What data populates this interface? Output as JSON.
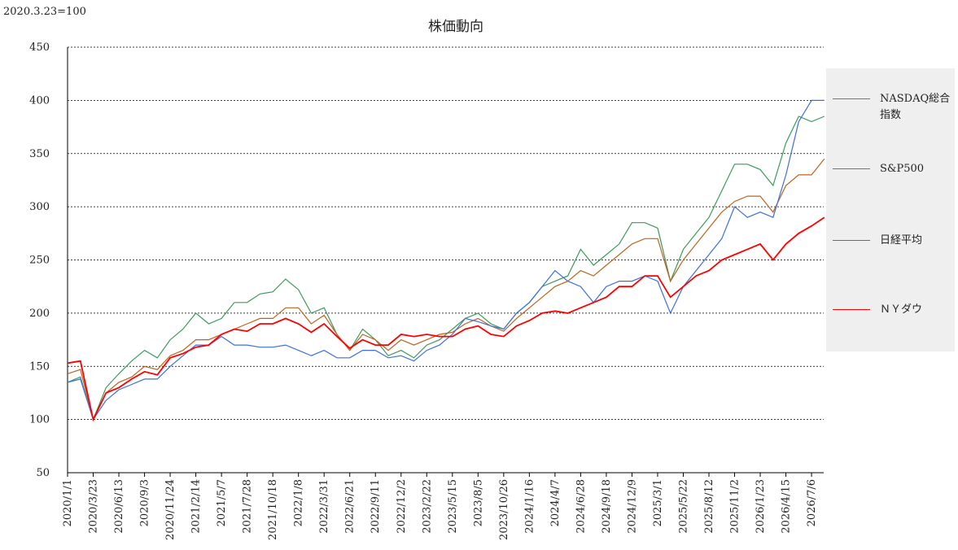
{
  "chart_data": {
    "type": "line",
    "title": "株価動向",
    "note": "2020.3.23=100",
    "categories": [
      "2020/1/1",
      null,
      "2020/3/23",
      null,
      "2020/6/13",
      null,
      "2020/9/3",
      null,
      "2020/11/24",
      null,
      "2021/2/14",
      null,
      "2021/5/7",
      null,
      "2021/7/28",
      null,
      "2021/10/18",
      null,
      "2022/1/8",
      null,
      "2022/3/31",
      null,
      "2022/6/21",
      null,
      "2022/9/11",
      null,
      "2022/12/2",
      null,
      "2023/2/22",
      null,
      "2023/5/15",
      null,
      "2023/8/5",
      null,
      "2023/10/26",
      null,
      "2024/1/16",
      null,
      "2024/4/7",
      null,
      "2024/6/28",
      null,
      "2024/9/18",
      null,
      "2024/12/9",
      null,
      "2025/3/1",
      null,
      "2025/5/22",
      null,
      "2025/8/12",
      null,
      "2025/11/2",
      null,
      "2026/1/23",
      null,
      "2026/4/15",
      null,
      "2026/7/6",
      null
    ],
    "series": [
      {
        "name": "NASDAQ総合指数",
        "color": "#3a9a5c",
        "values": [
          135,
          140,
          100,
          130,
          143,
          155,
          165,
          158,
          175,
          185,
          200,
          190,
          195,
          210,
          210,
          218,
          220,
          232,
          222,
          200,
          205,
          180,
          165,
          185,
          175,
          160,
          165,
          158,
          170,
          175,
          185,
          195,
          200,
          190,
          185,
          200,
          210,
          225,
          230,
          235,
          260,
          245,
          255,
          265,
          285,
          285,
          280,
          230,
          260,
          275,
          290,
          315,
          340,
          340,
          335,
          320,
          360,
          385,
          380,
          385
        ]
      },
      {
        "name": "S&P500",
        "color": "#c0621e",
        "values": [
          143,
          147,
          100,
          125,
          135,
          140,
          150,
          147,
          160,
          165,
          175,
          175,
          180,
          185,
          190,
          195,
          195,
          205,
          205,
          190,
          198,
          180,
          165,
          180,
          175,
          165,
          175,
          170,
          175,
          180,
          182,
          190,
          195,
          188,
          183,
          195,
          205,
          215,
          225,
          230,
          240,
          235,
          245,
          255,
          265,
          270,
          270,
          230,
          250,
          265,
          280,
          295,
          305,
          310,
          310,
          295,
          320,
          330,
          330,
          345
        ]
      },
      {
        "name": "日経平均",
        "color": "#3b6fe0",
        "values": [
          135,
          138,
          100,
          118,
          128,
          133,
          138,
          138,
          150,
          160,
          170,
          170,
          178,
          170,
          170,
          168,
          168,
          170,
          165,
          160,
          165,
          158,
          158,
          165,
          165,
          158,
          160,
          155,
          165,
          170,
          180,
          195,
          192,
          188,
          185,
          200,
          210,
          225,
          240,
          230,
          225,
          210,
          225,
          230,
          230,
          235,
          230,
          200,
          225,
          240,
          255,
          270,
          300,
          290,
          295,
          290,
          330,
          380,
          400,
          400
        ]
      },
      {
        "name": "ＮＹダウ",
        "color": "#ff0000",
        "values": [
          153,
          155,
          100,
          125,
          130,
          138,
          145,
          142,
          158,
          162,
          168,
          170,
          180,
          185,
          183,
          190,
          190,
          195,
          190,
          182,
          190,
          178,
          167,
          175,
          170,
          170,
          180,
          178,
          180,
          178,
          178,
          185,
          188,
          180,
          178,
          188,
          193,
          200,
          202,
          200,
          205,
          210,
          215,
          225,
          225,
          235,
          235,
          215,
          225,
          235,
          240,
          250,
          255,
          260,
          265,
          250,
          265,
          275,
          282,
          290
        ]
      }
    ],
    "ylim": [
      50,
      450
    ],
    "yticks": [
      50,
      100,
      150,
      200,
      250,
      300,
      350,
      400,
      450
    ],
    "grid": true,
    "legend": "right"
  }
}
